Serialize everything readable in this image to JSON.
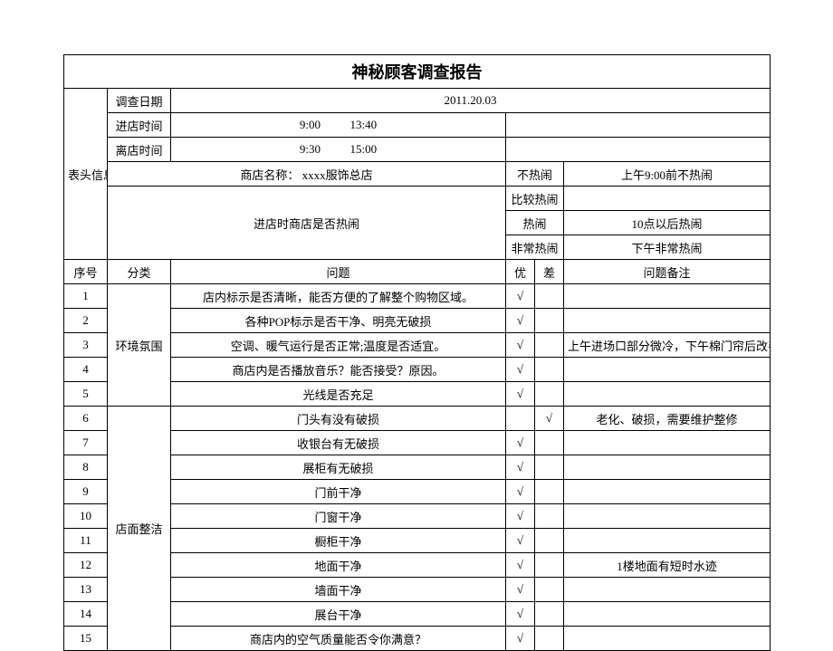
{
  "title": "神秘顾客调查报告",
  "header": {
    "group_label": "表头信息",
    "date_label": "调查日期",
    "date_value": "2011.20.03",
    "enter_label": "进店时间",
    "enter_t1": "9:00",
    "enter_t2": "13:40",
    "leave_label": "离店时间",
    "leave_t1": "9:30",
    "leave_t2": "15:00",
    "store_label": "商店名称：",
    "store_value": "xxxx服饰总店",
    "busy_q": "进店时商店是否热闹",
    "busy_levels": [
      "不热闹",
      "比较热闹",
      "热闹",
      "非常热闹"
    ],
    "busy_notes": [
      "上午9:00前不热闹",
      "",
      "10点以后热闹",
      "下午非常热闹"
    ]
  },
  "columns": {
    "seq": "序号",
    "cat": "分类",
    "q": "问题",
    "good": "优",
    "bad": "差",
    "note": "问题备注"
  },
  "categories": [
    {
      "name": "环境氛围",
      "span": 5
    },
    {
      "name": "店面整洁",
      "span": 10
    }
  ],
  "rows": [
    {
      "seq": "1",
      "q": "店内标示是否清晰，能否方便的了解整个购物区域。",
      "good": "√",
      "bad": "",
      "note": ""
    },
    {
      "seq": "2",
      "q": "各种POP标示是否干净、明亮无破损",
      "good": "√",
      "bad": "",
      "note": ""
    },
    {
      "seq": "3",
      "q": "空调、暖气运行是否正常;温度是否适宜。",
      "good": "√",
      "bad": "",
      "note": "上午进场口部分微冷，下午棉门帘后改善"
    },
    {
      "seq": "4",
      "q": "商店内是否播放音乐？能否接受？原因。",
      "good": "√",
      "bad": "",
      "note": ""
    },
    {
      "seq": "5",
      "q": "光线是否充足",
      "good": "√",
      "bad": "",
      "note": ""
    },
    {
      "seq": "6",
      "q": "门头有没有破损",
      "good": "",
      "bad": "√",
      "note": "老化、破损，需要维护整修"
    },
    {
      "seq": "7",
      "q": "收银台有无破损",
      "good": "√",
      "bad": "",
      "note": ""
    },
    {
      "seq": "8",
      "q": "展柜有无破损",
      "good": "√",
      "bad": "",
      "note": ""
    },
    {
      "seq": "9",
      "q": "门前干净",
      "good": "√",
      "bad": "",
      "note": ""
    },
    {
      "seq": "10",
      "q": "门窗干净",
      "good": "√",
      "bad": "",
      "note": ""
    },
    {
      "seq": "11",
      "q": "橱柜干净",
      "good": "√",
      "bad": "",
      "note": ""
    },
    {
      "seq": "12",
      "q": "地面干净",
      "good": "√",
      "bad": "",
      "note": "1楼地面有短时水迹"
    },
    {
      "seq": "13",
      "q": "墙面干净",
      "good": "√",
      "bad": "",
      "note": ""
    },
    {
      "seq": "14",
      "q": "展台干净",
      "good": "√",
      "bad": "",
      "note": ""
    },
    {
      "seq": "15",
      "q": "商店内的空气质量能否令你满意？",
      "good": "√",
      "bad": "",
      "note": ""
    }
  ]
}
